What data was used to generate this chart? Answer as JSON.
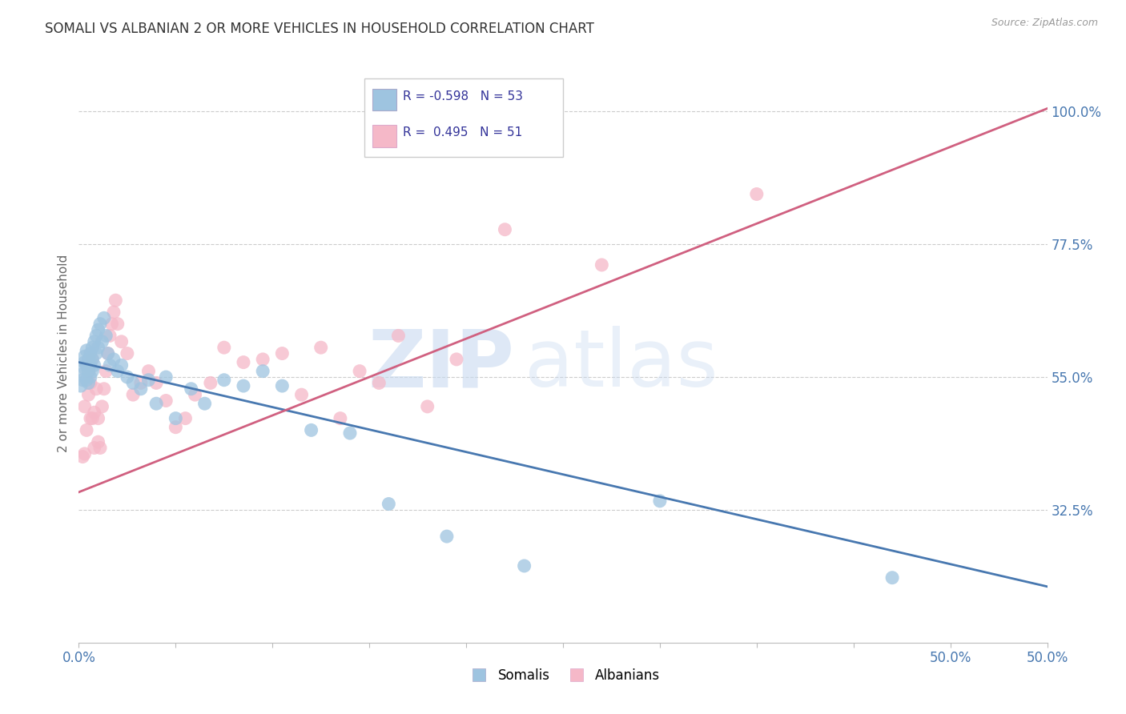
{
  "title": "SOMALI VS ALBANIAN 2 OR MORE VEHICLES IN HOUSEHOLD CORRELATION CHART",
  "source": "Source: ZipAtlas.com",
  "ylabel": "2 or more Vehicles in Household",
  "xlim": [
    0.0,
    0.5
  ],
  "ylim": [
    0.1,
    1.08
  ],
  "xtick_positions": [
    0.0,
    0.05,
    0.1,
    0.15,
    0.2,
    0.25,
    0.3,
    0.35,
    0.4,
    0.45,
    0.5
  ],
  "xticklabels_show": {
    "0.0": "0.0%",
    "0.5": "50.0%"
  },
  "yticks_right": [
    0.325,
    0.55,
    0.775,
    1.0
  ],
  "yticklabels_right": [
    "32.5%",
    "55.0%",
    "77.5%",
    "100.0%"
  ],
  "grid_color": "#cccccc",
  "background_color": "#ffffff",
  "somali_color": "#9ec4e0",
  "albanian_color": "#f5b8c8",
  "somali_line_color": "#4878b0",
  "albanian_line_color": "#d06080",
  "somali_R": -0.598,
  "somali_N": 53,
  "albanian_R": 0.495,
  "albanian_N": 51,
  "legend_label_somali": "Somalis",
  "legend_label_albanian": "Albanians",
  "somali_x": [
    0.001,
    0.002,
    0.002,
    0.003,
    0.003,
    0.003,
    0.004,
    0.004,
    0.004,
    0.005,
    0.005,
    0.005,
    0.006,
    0.006,
    0.006,
    0.007,
    0.007,
    0.007,
    0.008,
    0.008,
    0.009,
    0.009,
    0.01,
    0.01,
    0.011,
    0.012,
    0.013,
    0.014,
    0.015,
    0.016,
    0.018,
    0.02,
    0.022,
    0.025,
    0.028,
    0.032,
    0.036,
    0.04,
    0.045,
    0.05,
    0.058,
    0.065,
    0.075,
    0.085,
    0.095,
    0.105,
    0.12,
    0.14,
    0.16,
    0.19,
    0.23,
    0.3,
    0.42
  ],
  "somali_y": [
    0.535,
    0.545,
    0.555,
    0.565,
    0.575,
    0.585,
    0.595,
    0.57,
    0.545,
    0.58,
    0.56,
    0.54,
    0.59,
    0.57,
    0.55,
    0.6,
    0.58,
    0.56,
    0.61,
    0.57,
    0.62,
    0.59,
    0.63,
    0.6,
    0.64,
    0.61,
    0.65,
    0.62,
    0.59,
    0.57,
    0.58,
    0.56,
    0.57,
    0.55,
    0.54,
    0.53,
    0.545,
    0.505,
    0.55,
    0.48,
    0.53,
    0.505,
    0.545,
    0.535,
    0.56,
    0.535,
    0.46,
    0.455,
    0.335,
    0.28,
    0.23,
    0.34,
    0.21
  ],
  "albanian_x": [
    0.002,
    0.003,
    0.003,
    0.004,
    0.005,
    0.005,
    0.006,
    0.006,
    0.007,
    0.007,
    0.008,
    0.008,
    0.009,
    0.01,
    0.01,
    0.011,
    0.012,
    0.013,
    0.014,
    0.015,
    0.016,
    0.017,
    0.018,
    0.019,
    0.02,
    0.022,
    0.025,
    0.028,
    0.032,
    0.036,
    0.04,
    0.045,
    0.05,
    0.055,
    0.06,
    0.068,
    0.075,
    0.085,
    0.095,
    0.105,
    0.115,
    0.125,
    0.135,
    0.145,
    0.155,
    0.165,
    0.18,
    0.195,
    0.22,
    0.27,
    0.35
  ],
  "albanian_y": [
    0.415,
    0.42,
    0.5,
    0.46,
    0.52,
    0.56,
    0.48,
    0.54,
    0.58,
    0.48,
    0.43,
    0.49,
    0.53,
    0.48,
    0.44,
    0.43,
    0.5,
    0.53,
    0.56,
    0.59,
    0.62,
    0.64,
    0.66,
    0.68,
    0.64,
    0.61,
    0.59,
    0.52,
    0.54,
    0.56,
    0.54,
    0.51,
    0.465,
    0.48,
    0.52,
    0.54,
    0.6,
    0.575,
    0.58,
    0.59,
    0.52,
    0.6,
    0.48,
    0.56,
    0.54,
    0.62,
    0.5,
    0.58,
    0.8,
    0.74,
    0.86
  ],
  "somali_line_x0": 0.0,
  "somali_line_x1": 0.5,
  "somali_line_y0": 0.575,
  "somali_line_y1": 0.195,
  "albanian_line_x0": 0.0,
  "albanian_line_x1": 0.5,
  "albanian_line_y0": 0.355,
  "albanian_line_y1": 1.005
}
